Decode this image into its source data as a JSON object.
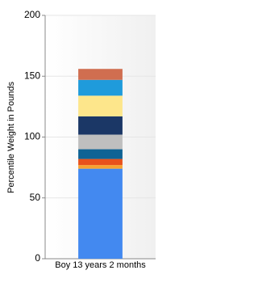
{
  "chart_data": {
    "type": "stacked_bar",
    "y_label": "Percentile Weight in Pounds",
    "categories": [
      "Boy 13 years 2 months"
    ],
    "series": [
      {
        "color": "#4389f0",
        "values": [
          74
        ]
      },
      {
        "color": "#f7a232",
        "values": [
          3
        ]
      },
      {
        "color": "#e8521c",
        "values": [
          5
        ]
      },
      {
        "color": "#0f6395",
        "values": [
          8
        ]
      },
      {
        "color": "#bfbfbf",
        "values": [
          12
        ]
      },
      {
        "color": "#1b3766",
        "values": [
          15
        ]
      },
      {
        "color": "#fde68b",
        "values": [
          17
        ]
      },
      {
        "color": "#1f9bdb",
        "values": [
          13
        ]
      },
      {
        "color": "#d06e50",
        "values": [
          9
        ]
      }
    ],
    "ylim": [
      0,
      200
    ],
    "yticks": [
      0,
      50,
      100,
      150,
      200
    ],
    "grid": true
  }
}
